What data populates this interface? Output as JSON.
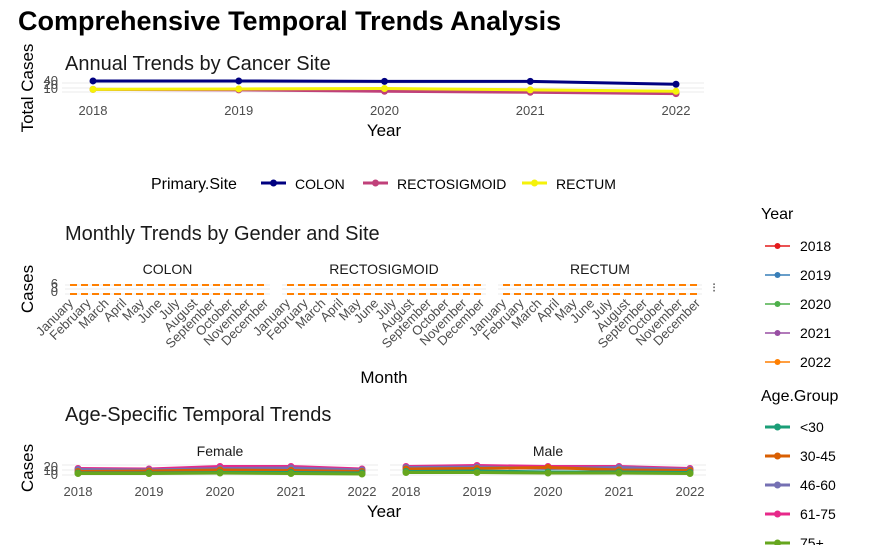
{
  "main_title": "Comprehensive Temporal Trends Analysis",
  "colors": {
    "colon": "#000080",
    "rectosigmoid": "#c0407a",
    "rectum": "#f5f20a",
    "y2018": "#e41a1c",
    "y2019": "#377eb8",
    "y2020": "#4daf4a",
    "y2021": "#984ea3",
    "y2022": "#ff7f00",
    "age_lt30": "#1b9e77",
    "age_30_45": "#d95f02",
    "age_46_60": "#7570b3",
    "age_61_75": "#e7298a",
    "age_75p": "#66a61e",
    "grid": "#ebebeb"
  },
  "chart_data": [
    {
      "type": "line",
      "title": "Annual Trends by Cancer Site",
      "xlabel": "Year",
      "ylabel": "Total Cases",
      "x": [
        "2018",
        "2019",
        "2020",
        "2021",
        "2022"
      ],
      "y_ticks": [
        "40",
        "20",
        "10"
      ],
      "ylim": [
        8,
        42
      ],
      "series": [
        {
          "name": "COLON",
          "values": [
            40,
            40,
            39,
            39,
            33
          ]
        },
        {
          "name": "RECTOSIGMOID",
          "values": [
            22,
            21,
            18,
            16,
            13
          ]
        },
        {
          "name": "RECTUM",
          "values": [
            22,
            23,
            24,
            21,
            18
          ]
        }
      ],
      "legend": {
        "title": "Primary.Site",
        "position": "bottom",
        "items": [
          "COLON",
          "RECTOSIGMOID",
          "RECTUM"
        ]
      }
    },
    {
      "type": "line",
      "title": "Monthly Trends by Gender and Site",
      "xlabel": "Month",
      "ylabel": "Cases",
      "facets": [
        "COLON",
        "RECTOSIGMOID",
        "RECTUM"
      ],
      "categories": [
        "January",
        "February",
        "March",
        "April",
        "May",
        "June",
        "July",
        "August",
        "September",
        "October",
        "November",
        "December"
      ],
      "y_ticks": [
        "6",
        "3",
        "0"
      ],
      "series": [
        {
          "name": "2022",
          "values": [
            4,
            4,
            4,
            4,
            4,
            4,
            4,
            4,
            4,
            4,
            4,
            4
          ]
        },
        {
          "name": "2022",
          "values": [
            1,
            1,
            1,
            1,
            1,
            1,
            1,
            1,
            1,
            1,
            1,
            1
          ]
        }
      ],
      "legend": {
        "title": "Year",
        "position": "right",
        "items": [
          "2018",
          "2019",
          "2020",
          "2021",
          "2022"
        ]
      }
    },
    {
      "type": "line",
      "title": "Age-Specific Temporal Trends",
      "xlabel": "Year",
      "ylabel": "Cases",
      "facets": [
        "Female",
        "Male"
      ],
      "x": [
        "2018",
        "2019",
        "2020",
        "2021",
        "2022"
      ],
      "y_ticks": [
        "20",
        "10",
        "0"
      ],
      "ylim": [
        0,
        24
      ],
      "series_female": [
        {
          "name": "61-75",
          "values": [
            15,
            14,
            19,
            19,
            14
          ]
        },
        {
          "name": "46-60",
          "values": [
            13,
            12,
            15,
            16,
            12
          ]
        },
        {
          "name": "30-45",
          "values": [
            9,
            10,
            12,
            11,
            9
          ]
        },
        {
          "name": "<30",
          "values": [
            6,
            6,
            7,
            7,
            6
          ]
        },
        {
          "name": "75+",
          "values": [
            5,
            5,
            6,
            5,
            4
          ]
        }
      ],
      "series_male": [
        {
          "name": "61-75",
          "values": [
            19,
            21,
            19,
            19,
            15
          ]
        },
        {
          "name": "46-60",
          "values": [
            17,
            18,
            15,
            17,
            13
          ]
        },
        {
          "name": "30-45",
          "values": [
            14,
            15,
            17,
            12,
            11
          ]
        },
        {
          "name": "<30",
          "values": [
            9,
            10,
            8,
            8,
            7
          ]
        },
        {
          "name": "75+",
          "values": [
            7,
            7,
            6,
            6,
            5
          ]
        }
      ],
      "legend": {
        "title": "Age.Group",
        "position": "right",
        "items": [
          "<30",
          "30-45",
          "46-60",
          "61-75",
          "75+"
        ]
      }
    }
  ]
}
